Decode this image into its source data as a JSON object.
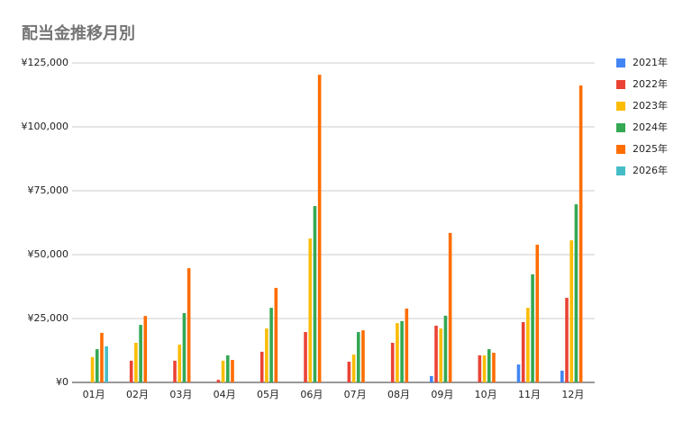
{
  "chart_data": {
    "type": "bar",
    "title": "配当金推移月別",
    "categories": [
      "01月",
      "02月",
      "03月",
      "04月",
      "05月",
      "06月",
      "07月",
      "08月",
      "09月",
      "10月",
      "11月",
      "12月"
    ],
    "series": [
      {
        "name": "2021年",
        "color": "#4285f4",
        "values": [
          null,
          null,
          null,
          null,
          null,
          null,
          null,
          null,
          2500,
          null,
          7000,
          4600
        ]
      },
      {
        "name": "2022年",
        "color": "#ea4335",
        "values": [
          null,
          8500,
          8500,
          1000,
          12000,
          19700,
          8100,
          15500,
          22200,
          10600,
          23600,
          33100
        ]
      },
      {
        "name": "2023年",
        "color": "#fbbc04",
        "values": [
          9900,
          15500,
          14800,
          8500,
          21100,
          56300,
          10900,
          23200,
          21100,
          10600,
          29200,
          55600
        ]
      },
      {
        "name": "2024年",
        "color": "#34a853",
        "values": [
          13000,
          22500,
          27100,
          10600,
          29200,
          69000,
          19700,
          24000,
          26100,
          13000,
          42300,
          69700
        ]
      },
      {
        "name": "2025年",
        "color": "#ff6d01",
        "values": [
          19400,
          26000,
          44700,
          8800,
          37000,
          120400,
          20400,
          28900,
          58500,
          11600,
          53900,
          116200
        ]
      },
      {
        "name": "2026年",
        "color": "#46bdc6",
        "values": [
          14100,
          null,
          null,
          null,
          null,
          null,
          null,
          null,
          null,
          null,
          null,
          null
        ]
      }
    ],
    "ylim": [
      0,
      125000
    ],
    "yticks": [
      {
        "value": 0,
        "label": "¥0"
      },
      {
        "value": 25000,
        "label": "¥25,000"
      },
      {
        "value": 50000,
        "label": "¥50,000"
      },
      {
        "value": 75000,
        "label": "¥75,000"
      },
      {
        "value": 100000,
        "label": "¥100,000"
      },
      {
        "value": 125000,
        "label": "¥125,000"
      }
    ],
    "grid": true,
    "legend": "right"
  }
}
